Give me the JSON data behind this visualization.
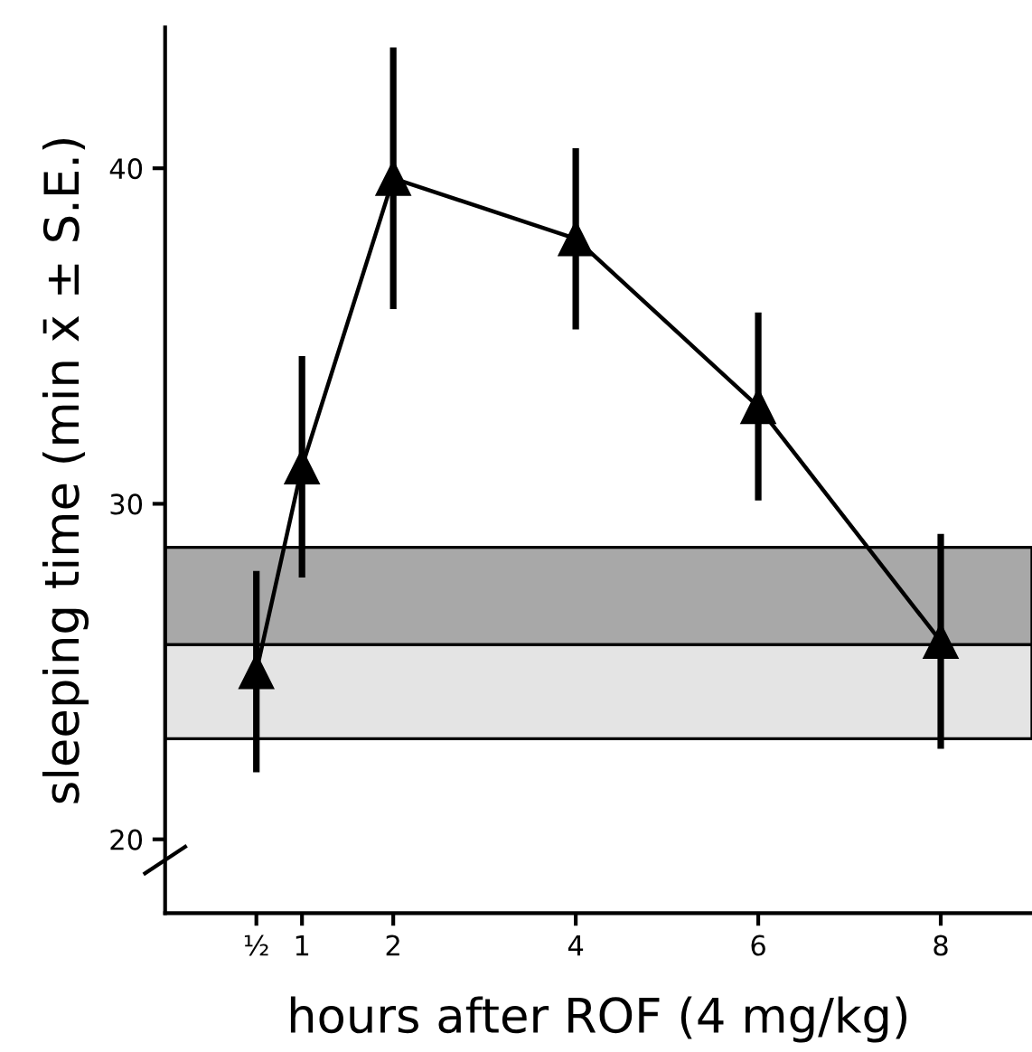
{
  "chart_data": {
    "type": "line",
    "xlabel": "hours after ROF (4 mg/kg)",
    "ylabel": "sleeping time (min x̄ ± S.E.)",
    "series": [
      {
        "color": "#000000",
        "x": [
          0.5,
          1,
          2,
          4,
          6,
          8
        ],
        "values": [
          25,
          31.1,
          39.7,
          37.9,
          32.9,
          25.9
        ],
        "errors": [
          3,
          3.3,
          3.9,
          2.7,
          2.8,
          3.2
        ]
      }
    ],
    "xlim": [
      -0.5,
      9
    ],
    "xticks": [
      {
        "value": 0.5,
        "label": "½"
      },
      1,
      2,
      4,
      6,
      8
    ],
    "ylim": [
      17.8,
      44.2
    ],
    "yticks": [
      20,
      30,
      40
    ],
    "bands": [
      {
        "axis": "y",
        "from": 25.8,
        "to": 28.7,
        "color": "#a8a8a8"
      },
      {
        "axis": "y",
        "from": 23.0,
        "to": 25.8,
        "color": "#e4e4e4"
      }
    ],
    "marker": "triangle",
    "line_style": "solid",
    "grid": false
  }
}
